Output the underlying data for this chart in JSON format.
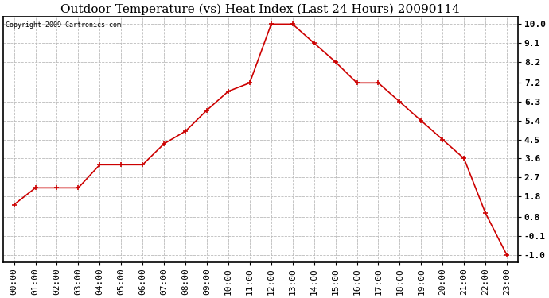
{
  "title": "Outdoor Temperature (vs) Heat Index (Last 24 Hours) 20090114",
  "copyright_text": "Copyright 2009 Cartronics.com",
  "x_labels": [
    "00:00",
    "01:00",
    "02:00",
    "03:00",
    "04:00",
    "05:00",
    "06:00",
    "07:00",
    "08:00",
    "09:00",
    "10:00",
    "11:00",
    "12:00",
    "13:00",
    "14:00",
    "15:00",
    "16:00",
    "17:00",
    "18:00",
    "19:00",
    "20:00",
    "21:00",
    "22:00",
    "23:00"
  ],
  "y_values": [
    1.4,
    2.2,
    2.2,
    2.2,
    3.3,
    3.3,
    3.3,
    4.3,
    4.9,
    5.9,
    6.8,
    7.2,
    10.0,
    10.0,
    9.1,
    8.2,
    7.2,
    7.2,
    6.3,
    5.4,
    4.5,
    3.6,
    1.0,
    -1.0
  ],
  "line_color": "#cc0000",
  "marker": "+",
  "marker_size": 5,
  "marker_linewidth": 1.2,
  "linewidth": 1.2,
  "background_color": "#ffffff",
  "grid_color": "#bbbbbb",
  "ylim": [
    -1.35,
    10.35
  ],
  "yticks": [
    10.0,
    9.1,
    8.2,
    7.2,
    6.3,
    5.4,
    4.5,
    3.6,
    2.7,
    1.8,
    0.8,
    -0.1,
    -1.0
  ],
  "ytick_labels": [
    "10.0",
    "9.1",
    "8.2",
    "7.2",
    "6.3",
    "5.4",
    "4.5",
    "3.6",
    "2.7",
    "1.8",
    "0.8",
    "-0.1",
    "-1.0"
  ],
  "title_fontsize": 11,
  "copyright_fontsize": 6,
  "tick_fontsize": 8,
  "axes_bg": "#ffffff"
}
